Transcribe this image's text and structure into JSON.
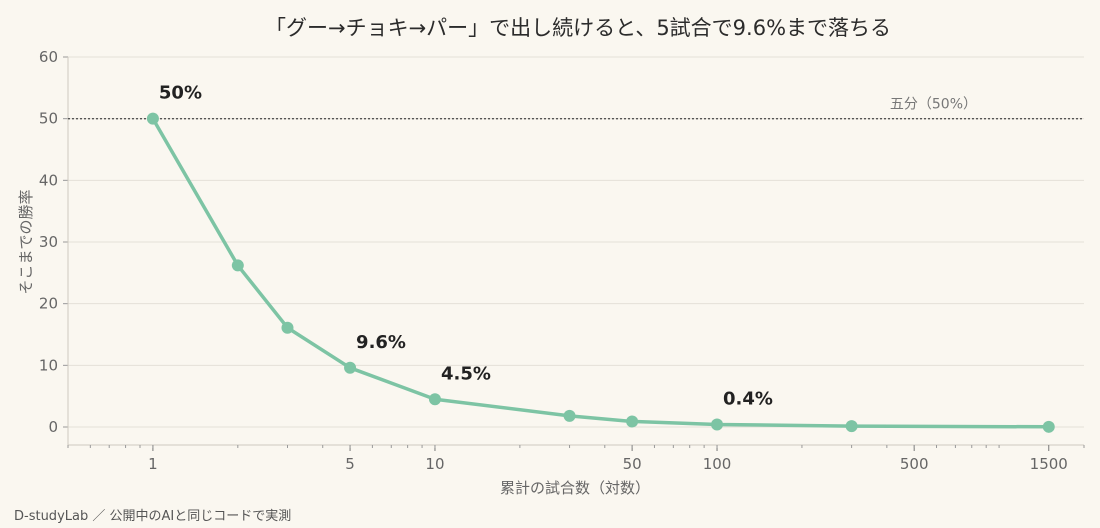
{
  "chart_data": {
    "type": "line",
    "title": "「グー→チョキ→パー」で出し続けると、5試合で9.6%まで落ちる",
    "xlabel": "累計の試合数（対数）",
    "ylabel": "そこまでの勝率",
    "x_scale": "log",
    "xlim": [
      0.5,
      2000
    ],
    "ylim": [
      0,
      60
    ],
    "x_ticks": [
      1,
      5,
      10,
      50,
      100,
      500,
      1500
    ],
    "y_ticks": [
      0,
      10,
      20,
      30,
      40,
      50,
      60
    ],
    "grid": "horizontal",
    "series": [
      {
        "x": [
          1,
          2,
          3,
          5,
          10,
          30,
          50,
          100,
          300,
          1500
        ],
        "y": [
          50,
          26.2,
          16.1,
          9.6,
          4.5,
          1.8,
          0.9,
          0.4,
          0.15,
          0.03
        ],
        "color": "#7dc4a4"
      }
    ],
    "annotations": [
      {
        "x": 1,
        "y": 50,
        "text": "50%"
      },
      {
        "x": 5,
        "y": 9.6,
        "text": "9.6%"
      },
      {
        "x": 10,
        "y": 4.5,
        "text": "4.5%"
      },
      {
        "x": 100,
        "y": 0.4,
        "text": "0.4%"
      }
    ],
    "reference_line": {
      "y": 50,
      "label": "五分（50%）",
      "color": "#555555"
    }
  },
  "footer": "D-studyLab ／ 公開中のAIと同じコードで実測",
  "colors": {
    "background": "#faf7f0",
    "line": "#7dc4a4",
    "grid": "#e4e0d8",
    "axis": "#cfcac0"
  }
}
